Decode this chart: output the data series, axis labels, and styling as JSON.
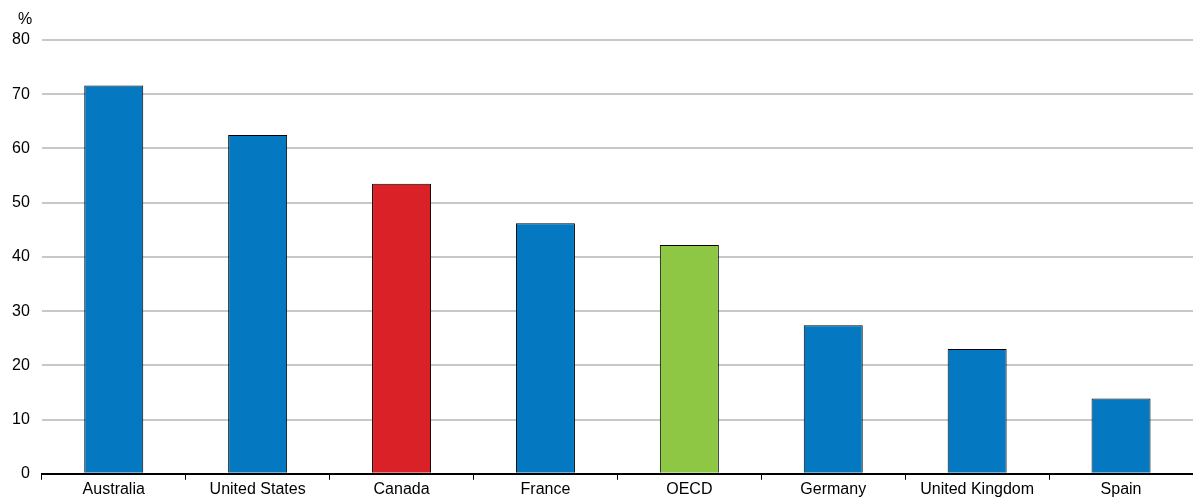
{
  "chart_data": {
    "type": "bar",
    "ylabel": "%",
    "categories": [
      "Australia",
      "United States",
      "Canada",
      "France",
      "OECD",
      "Germany",
      "United Kingdom",
      "Spain"
    ],
    "values": [
      71.6,
      62.5,
      53.5,
      46.2,
      42.2,
      27.4,
      23.0,
      13.9
    ],
    "colors": [
      "#0479c1",
      "#0479c1",
      "#da2128",
      "#0479c1",
      "#8dc743",
      "#0479c1",
      "#0479c1",
      "#0479c1"
    ],
    "ylim": [
      0,
      80
    ],
    "yticks": [
      0,
      10,
      20,
      30,
      40,
      50,
      60,
      70,
      80
    ],
    "grid": "y"
  }
}
